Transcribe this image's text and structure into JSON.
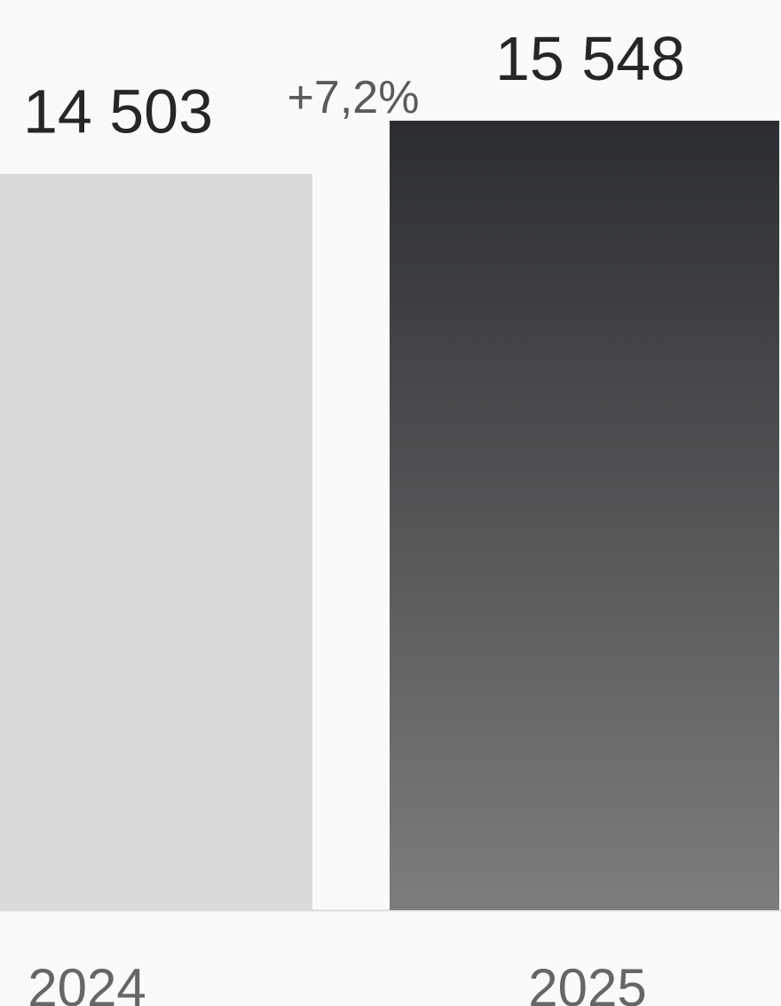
{
  "chart_data": {
    "type": "bar",
    "categories": [
      "2024",
      "2025"
    ],
    "values": [
      14503,
      15548
    ],
    "value_labels": [
      "14 503",
      "15 548"
    ],
    "annotation": "+7,2%",
    "colors": [
      "#dadada",
      [
        "#2a2d31",
        "#7d7d7d"
      ]
    ],
    "ylim": [
      0,
      17890
    ]
  }
}
